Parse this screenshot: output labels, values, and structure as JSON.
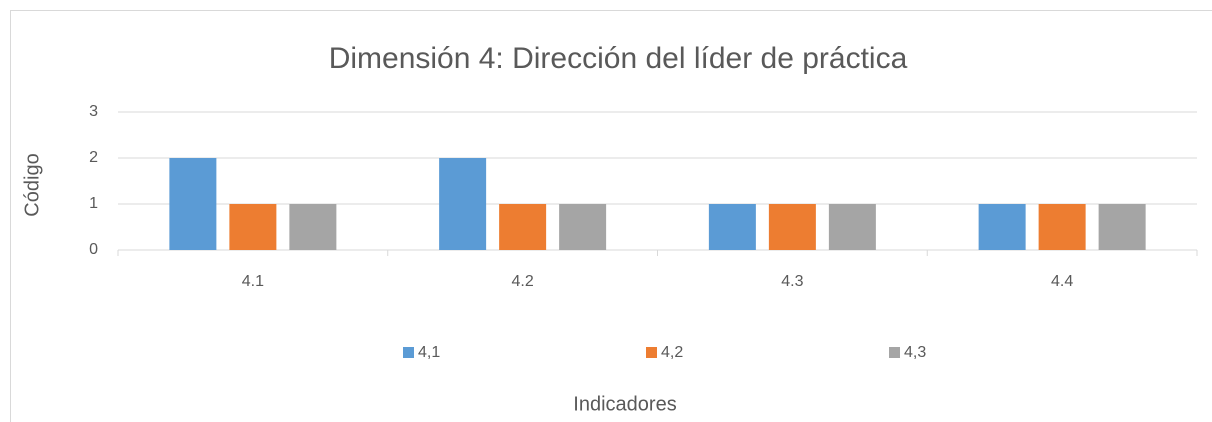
{
  "chart_data": {
    "type": "bar",
    "title": "Dimensión 4: Dirección del líder de práctica",
    "y_label": "Código",
    "x_label": "Indicadores",
    "categories": [
      "4.1",
      "4.2",
      "4.3",
      "4.4"
    ],
    "series": [
      {
        "name": "4,1",
        "color": "#5b9bd5",
        "values": [
          2,
          2,
          1,
          1
        ]
      },
      {
        "name": "4,2",
        "color": "#ed7d31",
        "values": [
          1,
          1,
          1,
          1
        ]
      },
      {
        "name": "4,3",
        "color": "#a5a5a5",
        "values": [
          1,
          1,
          1,
          1
        ]
      }
    ],
    "ylim": [
      0,
      3
    ],
    "yticks": [
      0,
      1,
      2,
      3
    ],
    "grid": true,
    "legend": "bottom"
  }
}
